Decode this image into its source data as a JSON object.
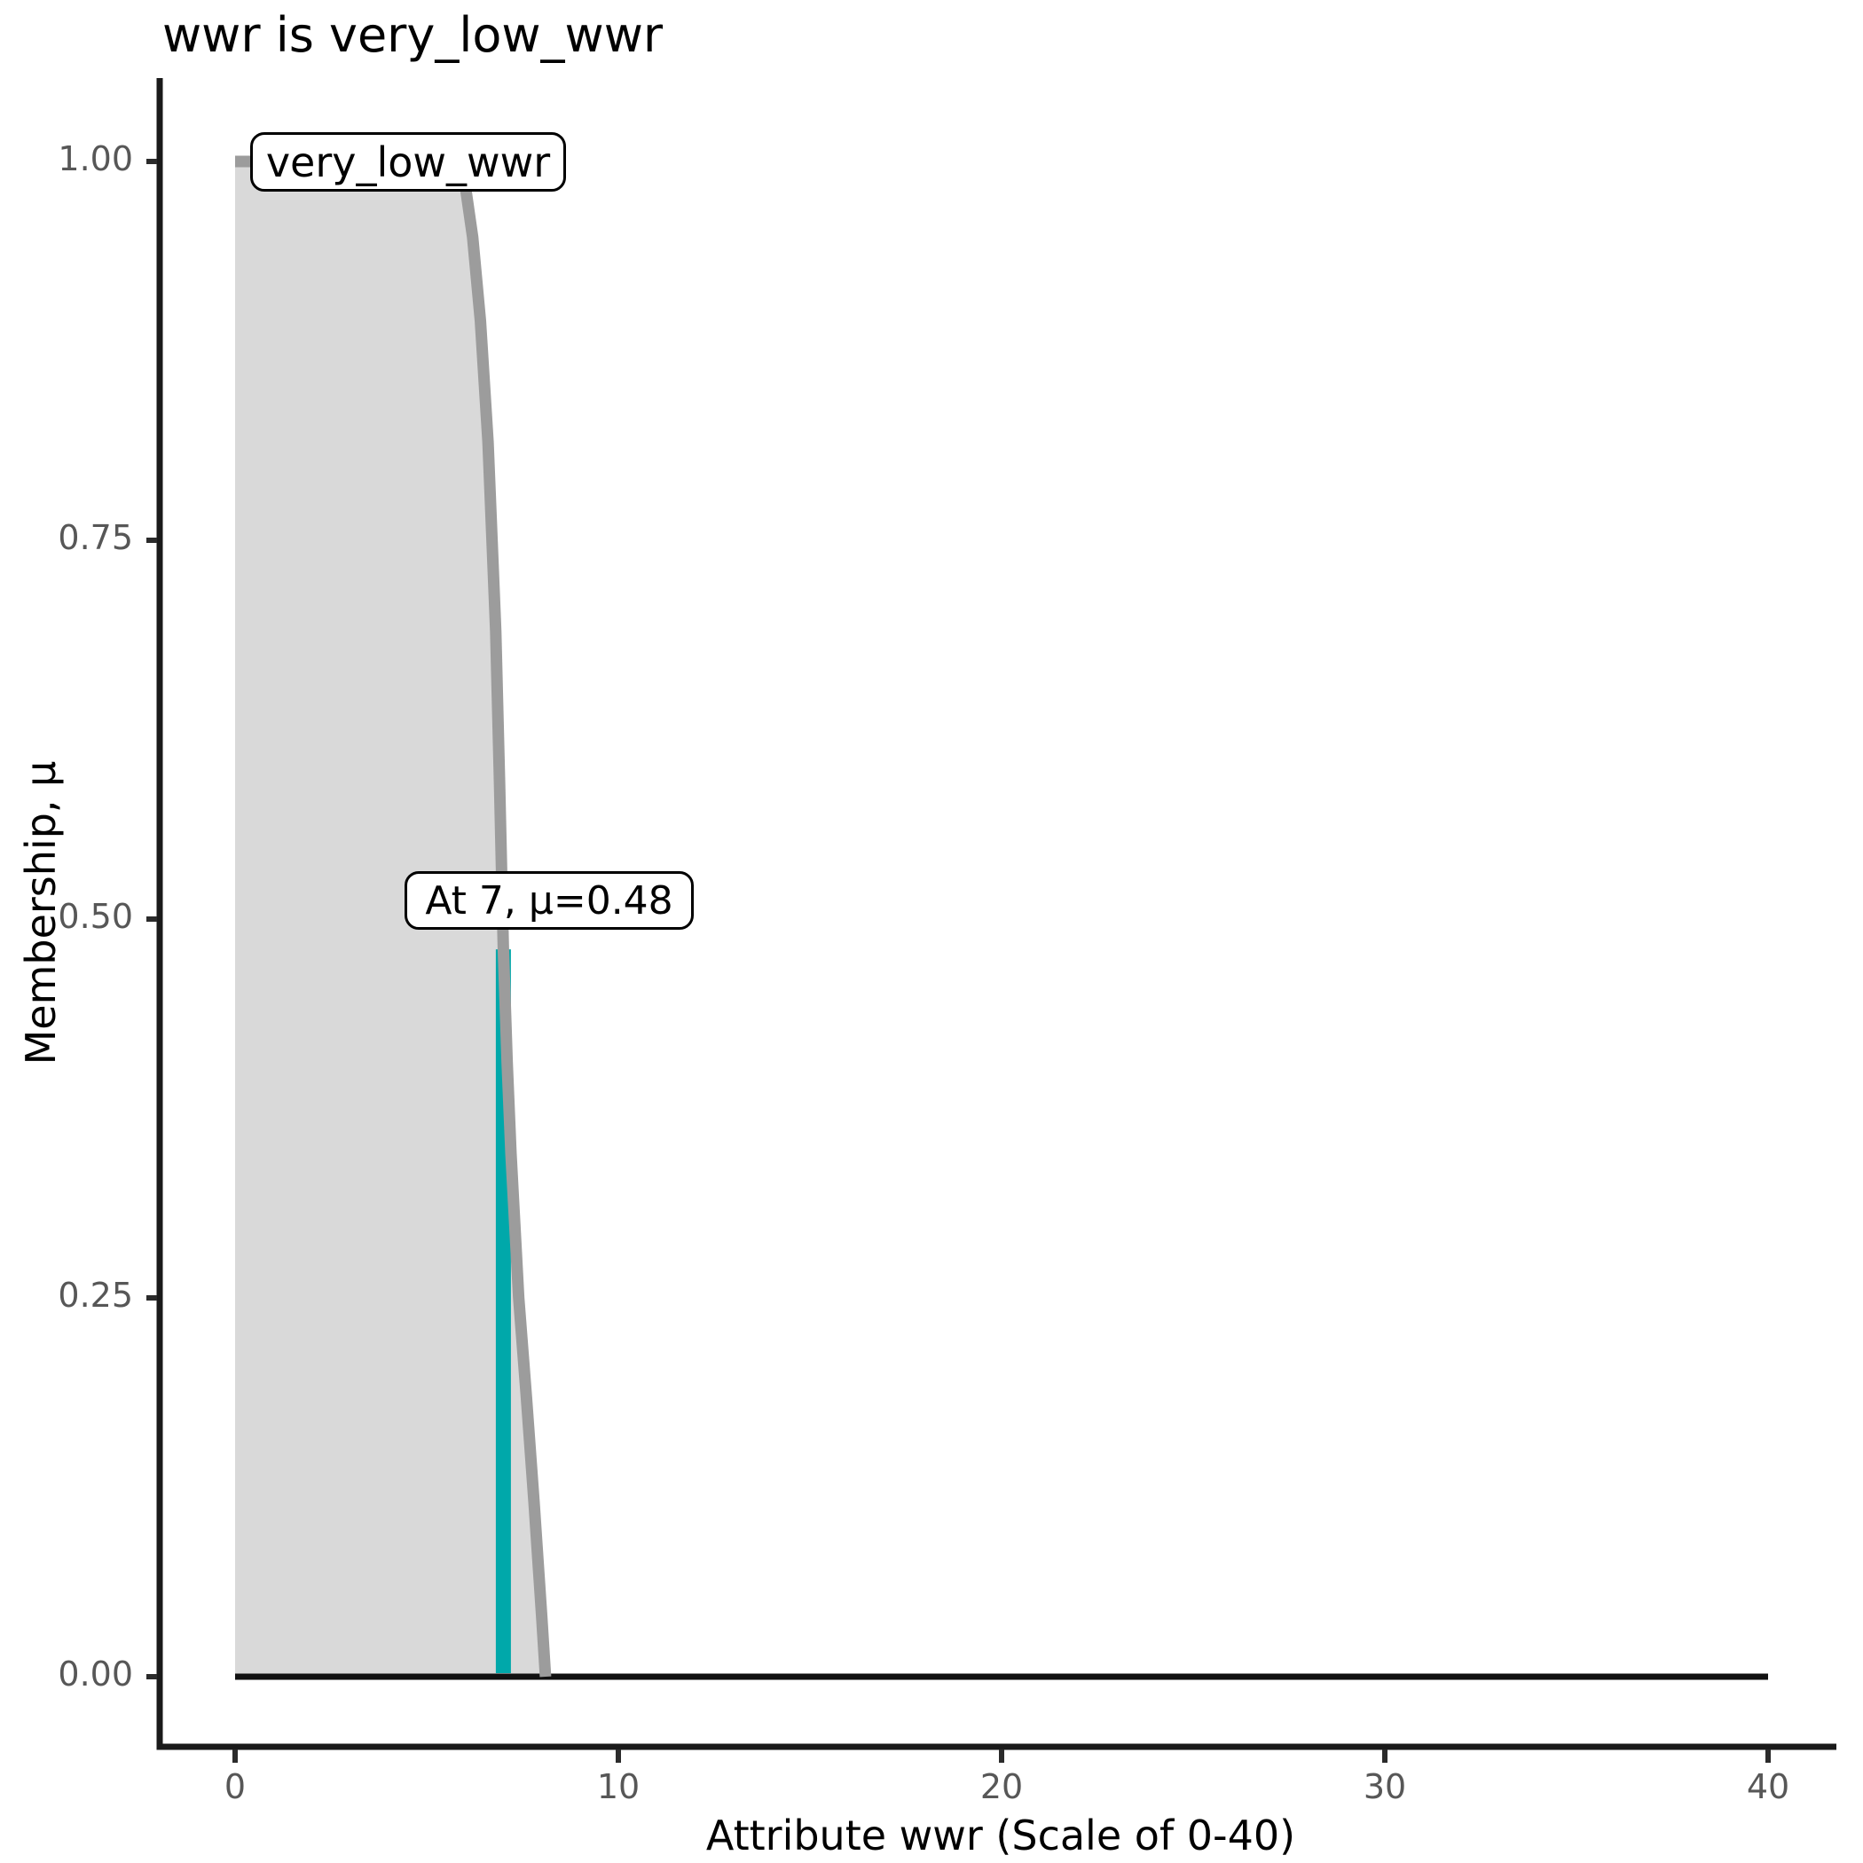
{
  "chart_data": {
    "type": "line",
    "title": "wwr is very_low_wwr",
    "xlabel": "Attribute wwr (Scale of 0-40)",
    "ylabel": "Membership, μ",
    "xlim": [
      0,
      40
    ],
    "ylim": [
      0,
      1
    ],
    "grid": false,
    "legend": "none",
    "x_ticks": [
      "0",
      "10",
      "20",
      "30",
      "40"
    ],
    "x_tick_values": [
      0,
      10,
      20,
      30,
      40
    ],
    "y_ticks": [
      "0.00",
      "0.25",
      "0.50",
      "0.75",
      "1.00"
    ],
    "y_tick_values": [
      0,
      0.25,
      0.5,
      0.75,
      1
    ],
    "series": [
      {
        "name": "very_low_wwr",
        "kind": "membership-function",
        "line_color": "#9C9C9C",
        "fill_color": "#D9D9D9",
        "points": [
          [
            0,
            1.0
          ],
          [
            5.8,
            1.0
          ],
          [
            6.0,
            0.985
          ],
          [
            6.2,
            0.95
          ],
          [
            6.4,
            0.895
          ],
          [
            6.6,
            0.815
          ],
          [
            6.8,
            0.69
          ],
          [
            6.9,
            0.59
          ],
          [
            7.0,
            0.48
          ],
          [
            7.1,
            0.405
          ],
          [
            7.2,
            0.345
          ],
          [
            7.4,
            0.25
          ],
          [
            7.6,
            0.185
          ],
          [
            7.8,
            0.115
          ],
          [
            8.0,
            0.04
          ],
          [
            8.1,
            0.0
          ]
        ]
      }
    ],
    "baseline": {
      "mu": 0,
      "x_from": 0,
      "x_to": 40,
      "color": "#111111"
    },
    "marker": {
      "x": 7,
      "mu": 0.48,
      "color": "#00A8AA",
      "label": "At 7, μ=0.48"
    },
    "annotations": [
      {
        "text": "very_low_wwr"
      },
      {
        "text": "At 7, μ=0.48"
      }
    ]
  }
}
